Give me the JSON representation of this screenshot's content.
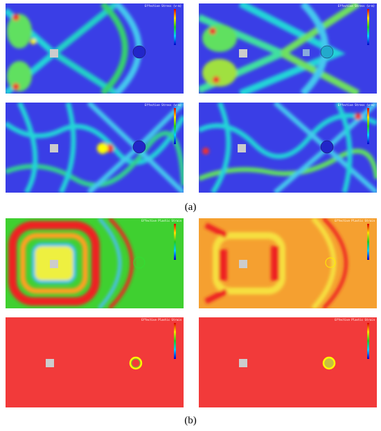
{
  "figure": {
    "panels": [
      {
        "title": "Effective Stress (v-m)"
      },
      {
        "title": "Effective Stress (v-m)"
      },
      {
        "title": "Effective Stress (v-m)"
      },
      {
        "title": "Effective Stress (v-m)"
      },
      {
        "title": "Effective Plastic Strain"
      },
      {
        "title": "Effective Plastic Strain"
      },
      {
        "title": "Effective Plastic Strain"
      },
      {
        "title": "Effective Plastic Strain"
      }
    ],
    "labels": [
      "(a)",
      "(b)"
    ]
  }
}
